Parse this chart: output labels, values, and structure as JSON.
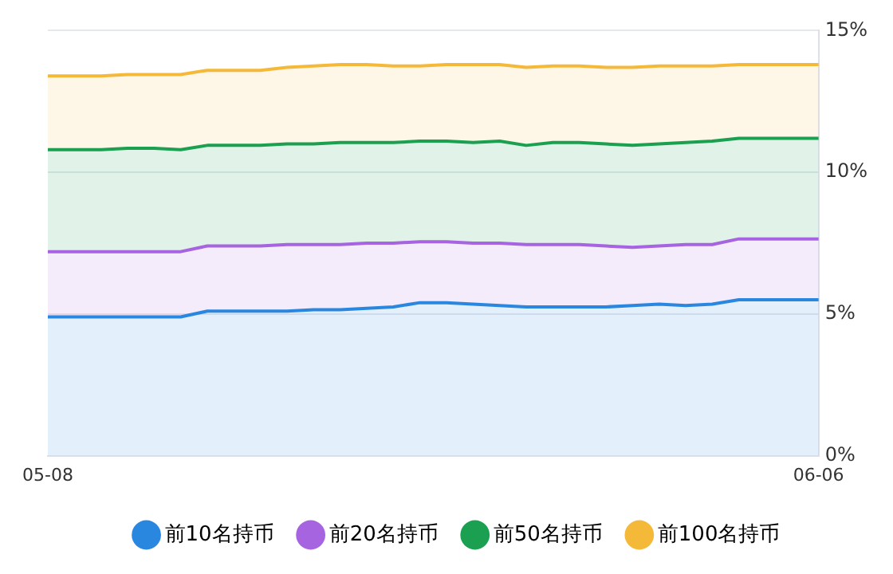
{
  "chart_data": {
    "type": "area",
    "categories": [
      "05-08",
      null,
      null,
      null,
      null,
      null,
      null,
      null,
      null,
      null,
      null,
      null,
      null,
      null,
      null,
      null,
      null,
      null,
      null,
      null,
      null,
      null,
      null,
      null,
      null,
      null,
      null,
      null,
      null,
      "06-06"
    ],
    "series": [
      {
        "name": "前10名持币",
        "color": "#2a87e0",
        "values": [
          4.9,
          4.9,
          4.9,
          4.9,
          4.9,
          4.9,
          5.1,
          5.1,
          5.1,
          5.1,
          5.15,
          5.15,
          5.2,
          5.25,
          5.4,
          5.4,
          5.35,
          5.3,
          5.25,
          5.25,
          5.25,
          5.25,
          5.3,
          5.35,
          5.3,
          5.35,
          5.5,
          5.5,
          5.5,
          5.5
        ]
      },
      {
        "name": "前20名持币",
        "color": "#a764e0",
        "values": [
          7.2,
          7.2,
          7.2,
          7.2,
          7.2,
          7.2,
          7.4,
          7.4,
          7.4,
          7.45,
          7.45,
          7.45,
          7.5,
          7.5,
          7.55,
          7.55,
          7.5,
          7.5,
          7.45,
          7.45,
          7.45,
          7.4,
          7.35,
          7.4,
          7.45,
          7.45,
          7.65,
          7.65,
          7.65,
          7.65
        ]
      },
      {
        "name": "前50名持币",
        "color": "#1aa050",
        "values": [
          10.8,
          10.8,
          10.8,
          10.85,
          10.85,
          10.8,
          10.95,
          10.95,
          10.95,
          11.0,
          11.0,
          11.05,
          11.05,
          11.05,
          11.1,
          11.1,
          11.05,
          11.1,
          10.95,
          11.05,
          11.05,
          11.0,
          10.95,
          11.0,
          11.05,
          11.1,
          11.2,
          11.2,
          11.2,
          11.2
        ]
      },
      {
        "name": "前100名持币",
        "color": "#f5b93a",
        "values": [
          13.4,
          13.4,
          13.4,
          13.45,
          13.45,
          13.45,
          13.6,
          13.6,
          13.6,
          13.7,
          13.75,
          13.8,
          13.8,
          13.75,
          13.75,
          13.8,
          13.8,
          13.8,
          13.7,
          13.75,
          13.75,
          13.7,
          13.7,
          13.75,
          13.75,
          13.75,
          13.8,
          13.8,
          13.8,
          13.8
        ]
      }
    ],
    "ylim": [
      0,
      15
    ],
    "yticks": [
      {
        "value": 0,
        "label": "0%"
      },
      {
        "value": 5,
        "label": "5%"
      },
      {
        "value": 10,
        "label": "10%"
      },
      {
        "value": 15,
        "label": "15%"
      }
    ],
    "grid": "y",
    "legend": "bottom"
  }
}
